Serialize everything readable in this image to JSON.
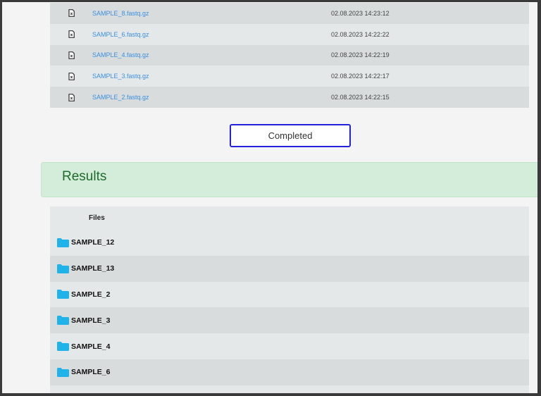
{
  "files": [
    {
      "name": "SAMPLE_8.fastq.gz",
      "date": "02.08.2023 14:23:12",
      "icon": "file-archive-icon"
    },
    {
      "name": "SAMPLE_6.fastq.gz",
      "date": "02.08.2023 14:22:22",
      "icon": "file-archive-icon"
    },
    {
      "name": "SAMPLE_4.fastq.gz",
      "date": "02.08.2023 14:22:19",
      "icon": "file-archive-icon"
    },
    {
      "name": "SAMPLE_3.fastq.gz",
      "date": "02.08.2023 14:22:17",
      "icon": "file-archive-icon"
    },
    {
      "name": "SAMPLE_2.fastq.gz",
      "date": "02.08.2023 14:22:15",
      "icon": "file-archive-icon"
    }
  ],
  "status_button": {
    "label": "Completed",
    "border_color": "#2222dd"
  },
  "results": {
    "title": "Results",
    "header": "Files",
    "folders": [
      "SAMPLE_12",
      "SAMPLE_13",
      "SAMPLE_2",
      "SAMPLE_3",
      "SAMPLE_4",
      "SAMPLE_6",
      ""
    ],
    "folder_color": "#1fb3ea"
  }
}
